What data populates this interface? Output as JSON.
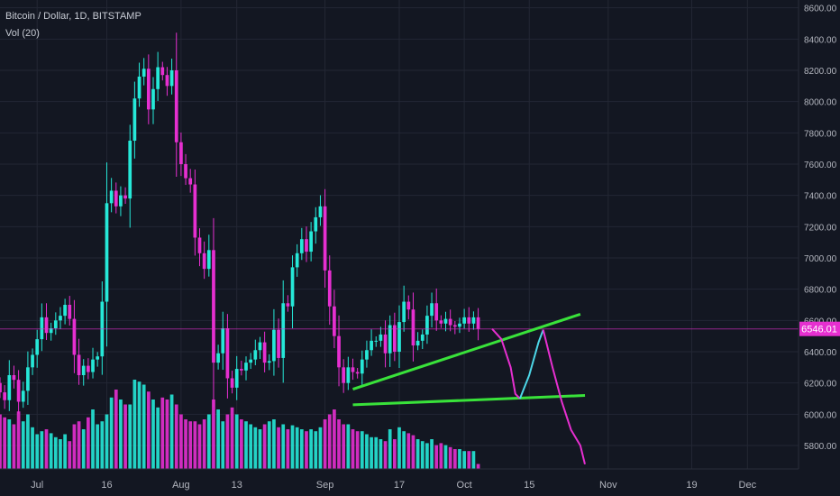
{
  "header": {
    "title": "Bitcoin / Dollar, 1D, BITSTAMP",
    "volume_label": "Vol (20)"
  },
  "price_tag": "6546.01",
  "colors": {
    "background": "#131722",
    "grid": "#232734",
    "up": "#26e8d8",
    "down": "#e62fd0",
    "axis_text": "#b2b5be",
    "trend": "#39e23a",
    "forecast_down": "#e62fd0",
    "forecast_up": "#4dd7e8",
    "price_line": "#e62fd0"
  },
  "chart_data": {
    "type": "candlestick",
    "ylim": [
      5650,
      8650
    ],
    "y_ticks": [
      5800,
      6000,
      6200,
      6400,
      6600,
      6800,
      7000,
      7200,
      7400,
      7600,
      7800,
      8000,
      8200,
      8400,
      8600
    ],
    "y_tick_labels": [
      "5800.00",
      "6000.00",
      "6200.00",
      "6400.00",
      "6600.00",
      "6800.00",
      "7000.00",
      "7200.00",
      "7400.00",
      "7600.00",
      "7800.00",
      "8000.00",
      "8200.00",
      "8400.00",
      "8600.00"
    ],
    "x_range": [
      "2018-06-23",
      "2018-12-12"
    ],
    "x_ticks": [
      {
        "date": "2018-07-01",
        "label": "Jul"
      },
      {
        "date": "2018-07-16",
        "label": "16"
      },
      {
        "date": "2018-08-01",
        "label": "Aug"
      },
      {
        "date": "2018-08-13",
        "label": "13"
      },
      {
        "date": "2018-09-01",
        "label": "Sep"
      },
      {
        "date": "2018-09-17",
        "label": "17"
      },
      {
        "date": "2018-10-01",
        "label": "Oct"
      },
      {
        "date": "2018-10-15",
        "label": "15"
      },
      {
        "date": "2018-11-01",
        "label": "Nov"
      },
      {
        "date": "2018-11-19",
        "label": "19"
      },
      {
        "date": "2018-12-01",
        "label": "Dec"
      }
    ],
    "start_date": "2018-06-23",
    "closes": [
      6140,
      6090,
      6250,
      6220,
      6080,
      6150,
      6300,
      6380,
      6480,
      6620,
      6520,
      6550,
      6600,
      6630,
      6700,
      6610,
      6380,
      6250,
      6310,
      6270,
      6350,
      6370,
      6720,
      7350,
      7430,
      7330,
      7400,
      7380,
      7750,
      8020,
      8160,
      8210,
      7950,
      8080,
      8220,
      8170,
      8100,
      8200,
      7740,
      7600,
      7510,
      7470,
      7130,
      7030,
      6930,
      7050,
      6330,
      6390,
      6550,
      6230,
      6170,
      6290,
      6280,
      6330,
      6350,
      6410,
      6460,
      6330,
      6340,
      6540,
      6360,
      6710,
      6690,
      6940,
      7030,
      7120,
      7040,
      7170,
      7260,
      7330,
      6920,
      6690,
      6500,
      6300,
      6200,
      6300,
      6270,
      6260,
      6350,
      6410,
      6470,
      6470,
      6510,
      6390,
      6570,
      6400,
      6590,
      6720,
      6670,
      6440,
      6470,
      6510,
      6630,
      6710,
      6600,
      6580,
      6610,
      6570,
      6560,
      6580,
      6620,
      6580,
      6620,
      6546
    ],
    "volumes": [
      55,
      52,
      50,
      45,
      58,
      48,
      55,
      42,
      35,
      38,
      40,
      36,
      32,
      30,
      35,
      28,
      45,
      48,
      40,
      52,
      60,
      45,
      48,
      55,
      72,
      80,
      70,
      65,
      65,
      90,
      88,
      85,
      78,
      70,
      62,
      72,
      70,
      75,
      65,
      55,
      50,
      48,
      48,
      45,
      50,
      55,
      70,
      60,
      48,
      55,
      62,
      55,
      50,
      48,
      45,
      42,
      40,
      45,
      48,
      50,
      42,
      45,
      40,
      44,
      42,
      40,
      38,
      40,
      38,
      42,
      50,
      55,
      60,
      50,
      45,
      45,
      40,
      38,
      38,
      35,
      32,
      32,
      30,
      28,
      40,
      30,
      42,
      38,
      36,
      34,
      30,
      28,
      26,
      30,
      24,
      26,
      24,
      22,
      20,
      20,
      18,
      18,
      18,
      5
    ],
    "trendlines": [
      {
        "from": [
          "2018-09-07",
          6160
        ],
        "to": [
          "2018-10-26",
          6640
        ]
      },
      {
        "from": [
          "2018-09-07",
          6060
        ],
        "to": [
          "2018-10-27",
          6120
        ]
      }
    ],
    "forecast_down": [
      [
        "2018-10-07",
        6546
      ],
      [
        "2018-10-09",
        6480
      ],
      [
        "2018-10-11",
        6300
      ],
      [
        "2018-10-12",
        6130
      ],
      [
        "2018-10-13",
        6100
      ]
    ],
    "forecast_up": [
      [
        "2018-10-13",
        6100
      ],
      [
        "2018-10-15",
        6250
      ],
      [
        "2018-10-17",
        6460
      ],
      [
        "2018-10-18",
        6540
      ]
    ],
    "forecast_down2": [
      [
        "2018-10-18",
        6540
      ],
      [
        "2018-10-20",
        6300
      ],
      [
        "2018-10-22",
        6080
      ],
      [
        "2018-10-24",
        5900
      ],
      [
        "2018-10-26",
        5800
      ],
      [
        "2018-10-27",
        5680
      ]
    ]
  }
}
